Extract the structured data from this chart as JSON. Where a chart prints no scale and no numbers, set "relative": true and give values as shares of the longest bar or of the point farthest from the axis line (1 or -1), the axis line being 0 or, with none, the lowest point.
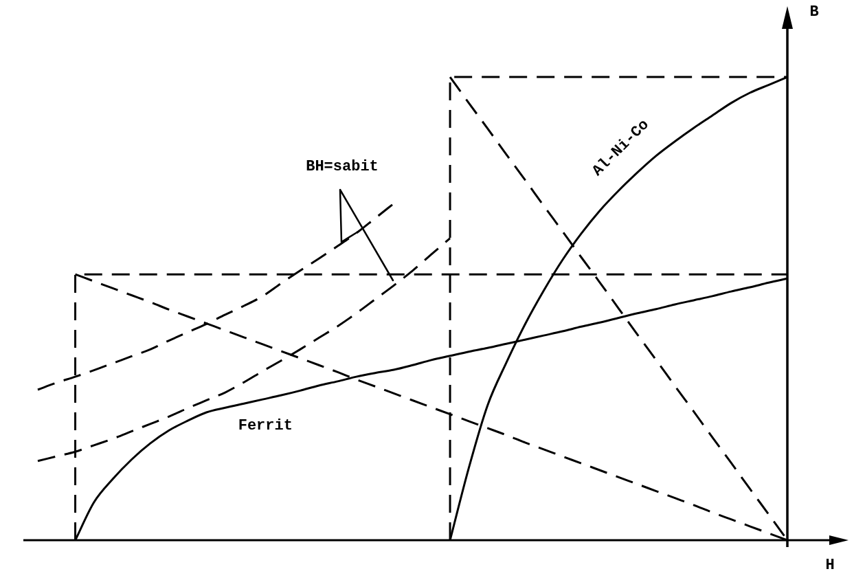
{
  "chart_data": {
    "type": "line",
    "relative": true,
    "xlabel": "H",
    "ylabel": "B",
    "legend": false,
    "grid": false,
    "categories": [
      null,
      null,
      null,
      null,
      null,
      null,
      null,
      null,
      null,
      null,
      null,
      null,
      null,
      null,
      null,
      null,
      null,
      null,
      null,
      null,
      null,
      null,
      null,
      null,
      null,
      null,
      null,
      null,
      null,
      null,
      null,
      null,
      null,
      null,
      null,
      null,
      null,
      null,
      null,
      null,
      null
    ],
    "annotations": [
      "BH=sabit"
    ],
    "series": [
      {
        "name": "Ferrit",
        "color": "#000000",
        "line_style": "solid",
        "values": [
          null,
          null,
          0,
          0.082,
          0.132,
          0.174,
          0.209,
          0.237,
          0.258,
          0.276,
          0.286,
          0.295,
          0.304,
          0.313,
          0.323,
          0.334,
          0.343,
          0.353,
          0.361,
          0.368,
          0.378,
          0.389,
          0.398,
          0.407,
          0.415,
          0.424,
          0.433,
          0.442,
          0.451,
          0.461,
          0.47,
          0.48,
          0.49,
          0.499,
          0.509,
          0.518,
          0.527,
          0.537,
          0.546,
          0.556,
          0.565
        ]
      },
      {
        "name": "Al-Ni-Co",
        "color": "#000000",
        "line_style": "solid",
        "values": [
          null,
          null,
          null,
          null,
          null,
          null,
          null,
          null,
          null,
          null,
          null,
          null,
          null,
          null,
          null,
          null,
          null,
          null,
          null,
          null,
          null,
          null,
          0,
          0.156,
          0.291,
          0.383,
          0.466,
          0.539,
          0.605,
          0.662,
          0.712,
          0.755,
          0.794,
          0.83,
          0.861,
          0.89,
          0.917,
          0.944,
          0.966,
          0.983,
          1
        ]
      },
      {
        "color": "#000000",
        "line_style": "dashed",
        "values": [
          0.171,
          0.181,
          0.191,
          0.205,
          0.219,
          0.235,
          0.251,
          0.267,
          0.285,
          0.302,
          0.319,
          0.341,
          0.365,
          0.388,
          0.412,
          0.437,
          0.462,
          0.49,
          0.52,
          0.55,
          0.582,
          0.617,
          0.652,
          null,
          null,
          null,
          null,
          null,
          null,
          null,
          null,
          null,
          null,
          null,
          null,
          null,
          null,
          null,
          null,
          null,
          null
        ]
      },
      {
        "color": "#000000",
        "line_style": "dashed",
        "values": [
          0.325,
          0.34,
          0.353,
          0.367,
          0.382,
          0.397,
          0.412,
          0.431,
          0.449,
          0.467,
          0.487,
          0.506,
          0.527,
          0.555,
          0.582,
          0.608,
          0.635,
          0.663,
          0.695,
          0.727,
          null,
          null,
          null,
          null,
          null,
          null,
          null,
          null,
          null,
          null,
          null,
          null,
          null,
          null,
          null,
          null,
          null,
          null,
          null,
          null,
          null
        ]
      },
      {
        "type": "step",
        "color": "#000000",
        "line_style": "dashed",
        "values": [
          null,
          null,
          0,
          0.574,
          0.574,
          0.574,
          0.574,
          0.574,
          0.574,
          0.574,
          0.574,
          0.574,
          0.574,
          0.574,
          0.574,
          0.574,
          0.574,
          0.574,
          0.574,
          0.574,
          0.574,
          0.574,
          0.574,
          0.574,
          0.574,
          0.574,
          0.574,
          0.574,
          0.574,
          0.574,
          0.574,
          0.574,
          0.574,
          0.574,
          0.574,
          0.574,
          0.574,
          0.574,
          0.574,
          0.574,
          0.574
        ]
      },
      {
        "color": "#000000",
        "line_style": "dashed",
        "values": [
          null,
          null,
          0.574,
          0.559,
          0.544,
          0.529,
          0.514,
          0.498,
          0.483,
          0.468,
          0.453,
          0.438,
          0.423,
          0.408,
          0.393,
          0.378,
          0.363,
          0.347,
          0.332,
          0.317,
          0.302,
          0.287,
          0.272,
          0.257,
          0.242,
          0.227,
          0.211,
          0.196,
          0.181,
          0.166,
          0.151,
          0.136,
          0.121,
          0.106,
          0.091,
          0.076,
          0.06,
          0.045,
          0.03,
          0.015,
          0
        ]
      },
      {
        "type": "step",
        "color": "#000000",
        "line_style": "dashed",
        "values": [
          null,
          null,
          null,
          null,
          null,
          null,
          null,
          null,
          null,
          null,
          null,
          null,
          null,
          null,
          null,
          null,
          null,
          null,
          null,
          null,
          null,
          null,
          0,
          1,
          1,
          1,
          1,
          1,
          1,
          1,
          1,
          1,
          1,
          1,
          1,
          1,
          1,
          1,
          1,
          1,
          1
        ]
      },
      {
        "color": "#000000",
        "line_style": "dashed",
        "values": [
          null,
          null,
          null,
          null,
          null,
          null,
          null,
          null,
          null,
          null,
          null,
          null,
          null,
          null,
          null,
          null,
          null,
          null,
          null,
          null,
          null,
          null,
          1,
          0.944,
          0.889,
          0.833,
          0.778,
          0.722,
          0.667,
          0.611,
          0.556,
          0.5,
          0.444,
          0.389,
          0.333,
          0.278,
          0.222,
          0.167,
          0.111,
          0.056,
          0
        ]
      }
    ]
  }
}
